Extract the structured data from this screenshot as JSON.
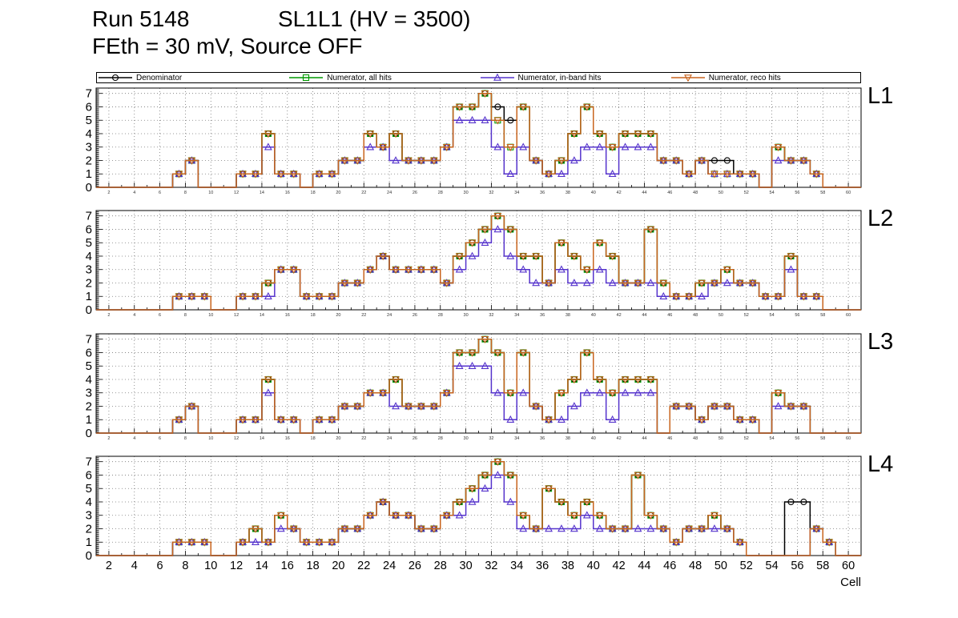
{
  "header": {
    "run_title": "Run 5148",
    "chamber_title": "SL1L1 (HV = 3500)",
    "conditions": "FEth = 30 mV, Source OFF"
  },
  "chart_data": {
    "type": "line",
    "style": "step-histogram",
    "title": "Run 5148 SL1L1 (HV = 3500), FEth = 30 mV, Source OFF",
    "xlabel": "Cell",
    "ylabel": "",
    "x_min": 1,
    "x_max": 61,
    "y_min": 0,
    "y_max": 7.4,
    "x_ticks": [
      2,
      4,
      6,
      8,
      10,
      12,
      14,
      16,
      18,
      20,
      22,
      24,
      26,
      28,
      30,
      32,
      34,
      36,
      38,
      40,
      42,
      44,
      46,
      48,
      50,
      52,
      54,
      56,
      58,
      60
    ],
    "y_ticks": [
      0,
      1,
      2,
      3,
      4,
      5,
      6,
      7
    ],
    "grid": true,
    "legend_position": "top",
    "series_meta": [
      {
        "key": "denominator",
        "name": "Denominator",
        "color": "#000000",
        "marker": "circle"
      },
      {
        "key": "all_hits",
        "name": "Numerator, all hits",
        "color": "#009900",
        "marker": "square"
      },
      {
        "key": "in_band",
        "name": "Numerator, in-band hits",
        "color": "#5533cc",
        "marker": "triangle-up"
      },
      {
        "key": "reco",
        "name": "Numerator, reco hits",
        "color": "#c8641e",
        "marker": "triangle-down"
      }
    ],
    "panels": [
      {
        "label": "L1",
        "series": {
          "denominator": [
            0,
            0,
            0,
            0,
            0,
            0,
            1,
            2,
            0,
            0,
            0,
            1,
            1,
            4,
            1,
            1,
            0,
            1,
            1,
            2,
            2,
            4,
            3,
            4,
            2,
            2,
            2,
            3,
            6,
            6,
            7,
            6,
            5,
            6,
            2,
            1,
            2,
            4,
            6,
            4,
            3,
            4,
            4,
            4,
            2,
            2,
            1,
            2,
            2,
            2,
            1,
            1,
            0,
            3,
            2,
            2,
            1,
            0,
            0,
            0
          ],
          "all_hits": [
            0,
            0,
            0,
            0,
            0,
            0,
            1,
            2,
            0,
            0,
            0,
            1,
            1,
            4,
            1,
            1,
            0,
            1,
            1,
            2,
            2,
            4,
            3,
            4,
            2,
            2,
            2,
            3,
            6,
            6,
            7,
            5,
            3,
            6,
            2,
            1,
            2,
            4,
            6,
            4,
            3,
            4,
            4,
            4,
            2,
            2,
            1,
            2,
            1,
            1,
            1,
            1,
            0,
            3,
            2,
            2,
            1,
            0,
            0,
            0
          ],
          "in_band": [
            0,
            0,
            0,
            0,
            0,
            0,
            1,
            2,
            0,
            0,
            0,
            1,
            1,
            3,
            1,
            1,
            0,
            1,
            1,
            2,
            2,
            3,
            3,
            2,
            2,
            2,
            2,
            3,
            5,
            5,
            5,
            3,
            1,
            3,
            2,
            1,
            1,
            2,
            3,
            3,
            1,
            3,
            3,
            3,
            2,
            2,
            1,
            2,
            1,
            1,
            1,
            1,
            0,
            2,
            2,
            2,
            1,
            0,
            0,
            0
          ],
          "reco": [
            0,
            0,
            0,
            0,
            0,
            0,
            1,
            2,
            0,
            0,
            0,
            1,
            1,
            4,
            1,
            1,
            0,
            1,
            1,
            2,
            2,
            4,
            3,
            4,
            2,
            2,
            2,
            3,
            6,
            6,
            7,
            5,
            3,
            6,
            2,
            1,
            2,
            4,
            6,
            4,
            3,
            4,
            4,
            4,
            2,
            2,
            1,
            2,
            1,
            1,
            1,
            1,
            0,
            3,
            2,
            2,
            1,
            0,
            0,
            0
          ]
        }
      },
      {
        "label": "L2",
        "series": {
          "denominator": [
            0,
            0,
            0,
            0,
            0,
            0,
            1,
            1,
            1,
            0,
            0,
            1,
            1,
            2,
            3,
            3,
            1,
            1,
            1,
            2,
            2,
            3,
            4,
            3,
            3,
            3,
            3,
            2,
            4,
            5,
            6,
            7,
            6,
            4,
            4,
            2,
            5,
            4,
            3,
            5,
            4,
            2,
            2,
            6,
            2,
            1,
            1,
            2,
            2,
            3,
            2,
            2,
            1,
            1,
            4,
            1,
            1,
            0,
            0,
            0
          ],
          "all_hits": [
            0,
            0,
            0,
            0,
            0,
            0,
            1,
            1,
            1,
            0,
            0,
            1,
            1,
            2,
            3,
            3,
            1,
            1,
            1,
            2,
            2,
            3,
            4,
            3,
            3,
            3,
            3,
            2,
            4,
            5,
            6,
            7,
            6,
            4,
            4,
            2,
            5,
            4,
            3,
            5,
            4,
            2,
            2,
            6,
            2,
            1,
            1,
            2,
            2,
            3,
            2,
            2,
            1,
            1,
            4,
            1,
            1,
            0,
            0,
            0
          ],
          "in_band": [
            0,
            0,
            0,
            0,
            0,
            0,
            1,
            1,
            1,
            0,
            0,
            1,
            1,
            1,
            3,
            3,
            1,
            1,
            1,
            2,
            2,
            3,
            4,
            3,
            3,
            3,
            3,
            2,
            3,
            4,
            5,
            6,
            4,
            3,
            2,
            2,
            3,
            2,
            2,
            3,
            2,
            2,
            2,
            2,
            1,
            1,
            1,
            1,
            2,
            2,
            2,
            2,
            1,
            1,
            3,
            1,
            1,
            0,
            0,
            0
          ],
          "reco": [
            0,
            0,
            0,
            0,
            0,
            0,
            1,
            1,
            1,
            0,
            0,
            1,
            1,
            2,
            3,
            3,
            1,
            1,
            1,
            2,
            2,
            3,
            4,
            3,
            3,
            3,
            3,
            2,
            4,
            5,
            6,
            7,
            6,
            4,
            4,
            2,
            5,
            4,
            3,
            5,
            4,
            2,
            2,
            6,
            2,
            1,
            1,
            2,
            2,
            3,
            2,
            2,
            1,
            1,
            4,
            1,
            1,
            0,
            0,
            0
          ]
        }
      },
      {
        "label": "L3",
        "series": {
          "denominator": [
            0,
            0,
            0,
            0,
            0,
            0,
            1,
            2,
            0,
            0,
            0,
            1,
            1,
            4,
            1,
            1,
            0,
            1,
            1,
            2,
            2,
            3,
            3,
            4,
            2,
            2,
            2,
            3,
            6,
            6,
            7,
            6,
            3,
            6,
            2,
            1,
            3,
            4,
            6,
            4,
            3,
            4,
            4,
            4,
            0,
            2,
            2,
            1,
            2,
            2,
            1,
            1,
            0,
            3,
            2,
            2,
            0,
            0,
            0,
            0
          ],
          "all_hits": [
            0,
            0,
            0,
            0,
            0,
            0,
            1,
            2,
            0,
            0,
            0,
            1,
            1,
            4,
            1,
            1,
            0,
            1,
            1,
            2,
            2,
            3,
            3,
            4,
            2,
            2,
            2,
            3,
            6,
            6,
            7,
            6,
            3,
            6,
            2,
            1,
            3,
            4,
            6,
            4,
            3,
            4,
            4,
            4,
            0,
            2,
            2,
            1,
            2,
            2,
            1,
            1,
            0,
            3,
            2,
            2,
            0,
            0,
            0,
            0
          ],
          "in_band": [
            0,
            0,
            0,
            0,
            0,
            0,
            1,
            2,
            0,
            0,
            0,
            1,
            1,
            3,
            1,
            1,
            0,
            1,
            1,
            2,
            2,
            3,
            3,
            2,
            2,
            2,
            2,
            3,
            5,
            5,
            5,
            3,
            1,
            3,
            2,
            1,
            1,
            2,
            3,
            3,
            1,
            3,
            3,
            3,
            0,
            2,
            2,
            1,
            2,
            2,
            1,
            1,
            0,
            2,
            2,
            2,
            0,
            0,
            0,
            0
          ],
          "reco": [
            0,
            0,
            0,
            0,
            0,
            0,
            1,
            2,
            0,
            0,
            0,
            1,
            1,
            4,
            1,
            1,
            0,
            1,
            1,
            2,
            2,
            3,
            3,
            4,
            2,
            2,
            2,
            3,
            6,
            6,
            7,
            6,
            3,
            6,
            2,
            1,
            3,
            4,
            6,
            4,
            3,
            4,
            4,
            4,
            0,
            2,
            2,
            1,
            2,
            2,
            1,
            1,
            0,
            3,
            2,
            2,
            0,
            0,
            0,
            0
          ]
        }
      },
      {
        "label": "L4",
        "series": {
          "denominator": [
            0,
            0,
            0,
            0,
            0,
            0,
            1,
            1,
            1,
            0,
            0,
            1,
            2,
            1,
            3,
            2,
            1,
            1,
            1,
            2,
            2,
            3,
            4,
            3,
            3,
            2,
            2,
            3,
            4,
            5,
            6,
            7,
            6,
            3,
            2,
            5,
            4,
            3,
            4,
            3,
            2,
            2,
            6,
            3,
            2,
            1,
            2,
            2,
            3,
            2,
            1,
            0,
            0,
            0,
            4,
            4,
            2,
            1,
            0,
            0
          ],
          "all_hits": [
            0,
            0,
            0,
            0,
            0,
            0,
            1,
            1,
            1,
            0,
            0,
            1,
            2,
            1,
            3,
            2,
            1,
            1,
            1,
            2,
            2,
            3,
            4,
            3,
            3,
            2,
            2,
            3,
            4,
            5,
            6,
            7,
            6,
            3,
            2,
            5,
            4,
            3,
            4,
            3,
            2,
            2,
            6,
            3,
            2,
            1,
            2,
            2,
            3,
            2,
            1,
            0,
            0,
            0,
            0,
            0,
            2,
            1,
            0,
            0
          ],
          "in_band": [
            0,
            0,
            0,
            0,
            0,
            0,
            1,
            1,
            1,
            0,
            0,
            1,
            1,
            1,
            2,
            2,
            1,
            1,
            1,
            2,
            2,
            3,
            4,
            3,
            3,
            2,
            2,
            3,
            3,
            4,
            5,
            6,
            4,
            2,
            2,
            2,
            2,
            2,
            3,
            2,
            2,
            2,
            2,
            2,
            2,
            1,
            2,
            2,
            2,
            2,
            1,
            0,
            0,
            0,
            0,
            0,
            2,
            1,
            0,
            0
          ],
          "reco": [
            0,
            0,
            0,
            0,
            0,
            0,
            1,
            1,
            1,
            0,
            0,
            1,
            2,
            1,
            3,
            2,
            1,
            1,
            1,
            2,
            2,
            3,
            4,
            3,
            3,
            2,
            2,
            3,
            4,
            5,
            6,
            7,
            6,
            3,
            2,
            5,
            4,
            3,
            4,
            3,
            2,
            2,
            6,
            3,
            2,
            1,
            2,
            2,
            3,
            2,
            1,
            0,
            0,
            0,
            0,
            0,
            2,
            1,
            0,
            0
          ]
        }
      }
    ]
  }
}
